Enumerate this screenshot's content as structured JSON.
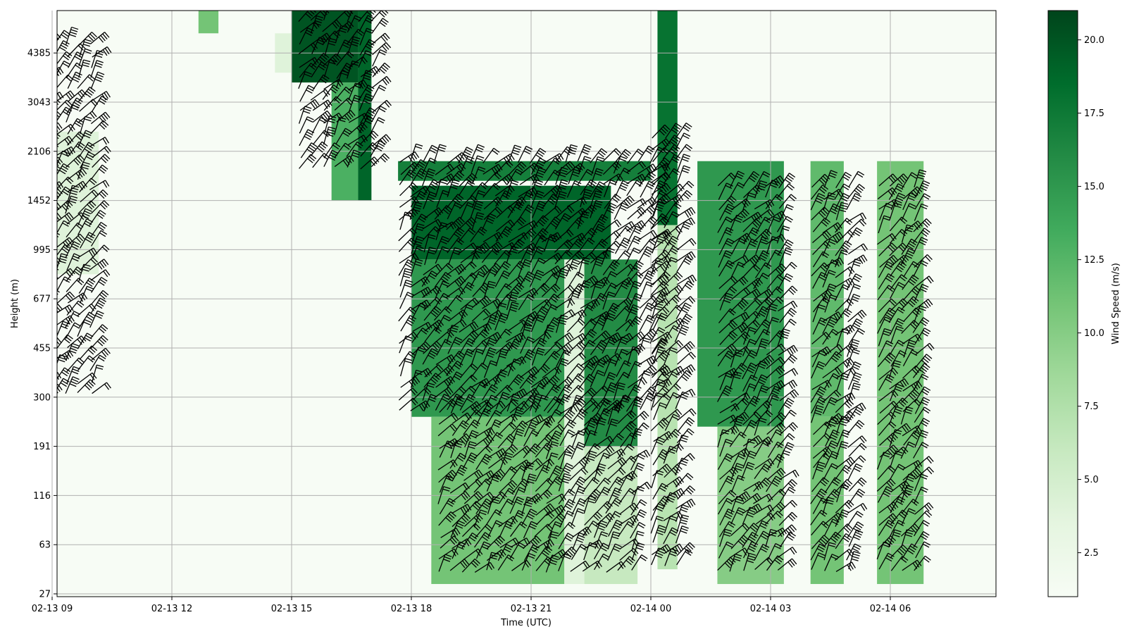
{
  "chart_data": {
    "type": "heatmap",
    "title": "",
    "xlabel": "Time (UTC)",
    "ylabel": "Height (m)",
    "colorbar_label": "Wind Speed (m/s)",
    "colormap": "Greens",
    "color_range": [
      1,
      21
    ],
    "colorbar_ticks": [
      "2.5",
      "5.0",
      "7.5",
      "10.0",
      "12.5",
      "15.0",
      "17.5",
      "20.0"
    ],
    "x_tick_labels": [
      "02-13 09",
      "02-13 12",
      "02-13 15",
      "02-13 18",
      "02-13 21",
      "02-14 00",
      "02-14 03",
      "02-14 06"
    ],
    "x_range": [
      "02-13 07:45",
      "02-14 07:20"
    ],
    "y_tick_labels": [
      "27",
      "63",
      "116",
      "191",
      "300",
      "455",
      "677",
      "995",
      "1452",
      "2106",
      "3043",
      "4385"
    ],
    "grid": true,
    "overlay": "wind barbs",
    "wind_speed_regions": [
      {
        "start": "02-13 07:45",
        "end": "02-13 08:50",
        "bottom_level": 7.7,
        "top_level": 11.5,
        "speed": 5.0
      },
      {
        "start": "02-13 08:20",
        "end": "02-13 08:40",
        "bottom_level": 9.4,
        "top_level": 10.4,
        "speed": 9.0
      },
      {
        "start": "02-13 09:00",
        "end": "02-13 10:10",
        "bottom_level": 6.5,
        "top_level": 9.4,
        "speed": 4.0
      },
      {
        "start": "02-13 12:40",
        "end": "02-13 13:10",
        "bottom_level": 11.4,
        "top_level": 11.9,
        "speed": 11.0
      },
      {
        "start": "02-13 14:35",
        "end": "02-13 15:00",
        "bottom_level": 10.6,
        "top_level": 11.4,
        "speed": 4.0
      },
      {
        "start": "02-13 15:00",
        "end": "02-13 16:40",
        "bottom_level": 10.4,
        "top_level": 11.9,
        "speed": 20.0
      },
      {
        "start": "02-13 16:00",
        "end": "02-13 16:40",
        "bottom_level": 8.0,
        "top_level": 10.4,
        "speed": 13.0
      },
      {
        "start": "02-13 16:40",
        "end": "02-13 17:00",
        "bottom_level": 8.0,
        "top_level": 11.9,
        "speed": 19.0
      },
      {
        "start": "02-13 17:40",
        "end": "02-14 00:00",
        "bottom_level": 8.4,
        "top_level": 8.8,
        "speed": 17.0
      },
      {
        "start": "02-13 18:00",
        "end": "02-13 23:00",
        "bottom_level": 6.8,
        "top_level": 8.3,
        "speed": 19.0
      },
      {
        "start": "02-13 18:00",
        "end": "02-13 21:50",
        "bottom_level": 3.6,
        "top_level": 6.8,
        "speed": 15.0
      },
      {
        "start": "02-13 18:30",
        "end": "02-13 21:50",
        "bottom_level": 0.2,
        "top_level": 3.6,
        "speed": 11.0
      },
      {
        "start": "02-13 21:50",
        "end": "02-13 22:20",
        "bottom_level": 0.2,
        "top_level": 6.8,
        "speed": 4.0
      },
      {
        "start": "02-13 22:20",
        "end": "02-13 23:40",
        "bottom_level": 3.0,
        "top_level": 6.8,
        "speed": 16.0
      },
      {
        "start": "02-13 22:20",
        "end": "02-13 23:40",
        "bottom_level": 0.2,
        "top_level": 3.0,
        "speed": 6.0
      },
      {
        "start": "02-14 00:10",
        "end": "02-14 00:40",
        "bottom_level": 7.5,
        "top_level": 11.9,
        "speed": 18.0
      },
      {
        "start": "02-14 00:10",
        "end": "02-14 00:40",
        "bottom_level": 0.5,
        "top_level": 7.5,
        "speed": 7.0
      },
      {
        "start": "02-14 01:10",
        "end": "02-14 03:20",
        "bottom_level": 3.4,
        "top_level": 8.8,
        "speed": 15.0
      },
      {
        "start": "02-14 01:40",
        "end": "02-14 03:20",
        "bottom_level": 0.2,
        "top_level": 3.4,
        "speed": 10.0
      },
      {
        "start": "02-14 04:00",
        "end": "02-14 04:50",
        "bottom_level": 3.6,
        "top_level": 8.8,
        "speed": 12.0
      },
      {
        "start": "02-14 04:00",
        "end": "02-14 04:50",
        "bottom_level": 0.2,
        "top_level": 3.6,
        "speed": 11.0
      },
      {
        "start": "02-14 05:40",
        "end": "02-14 06:50",
        "bottom_level": 0.2,
        "top_level": 8.8,
        "speed": 11.0
      }
    ]
  }
}
